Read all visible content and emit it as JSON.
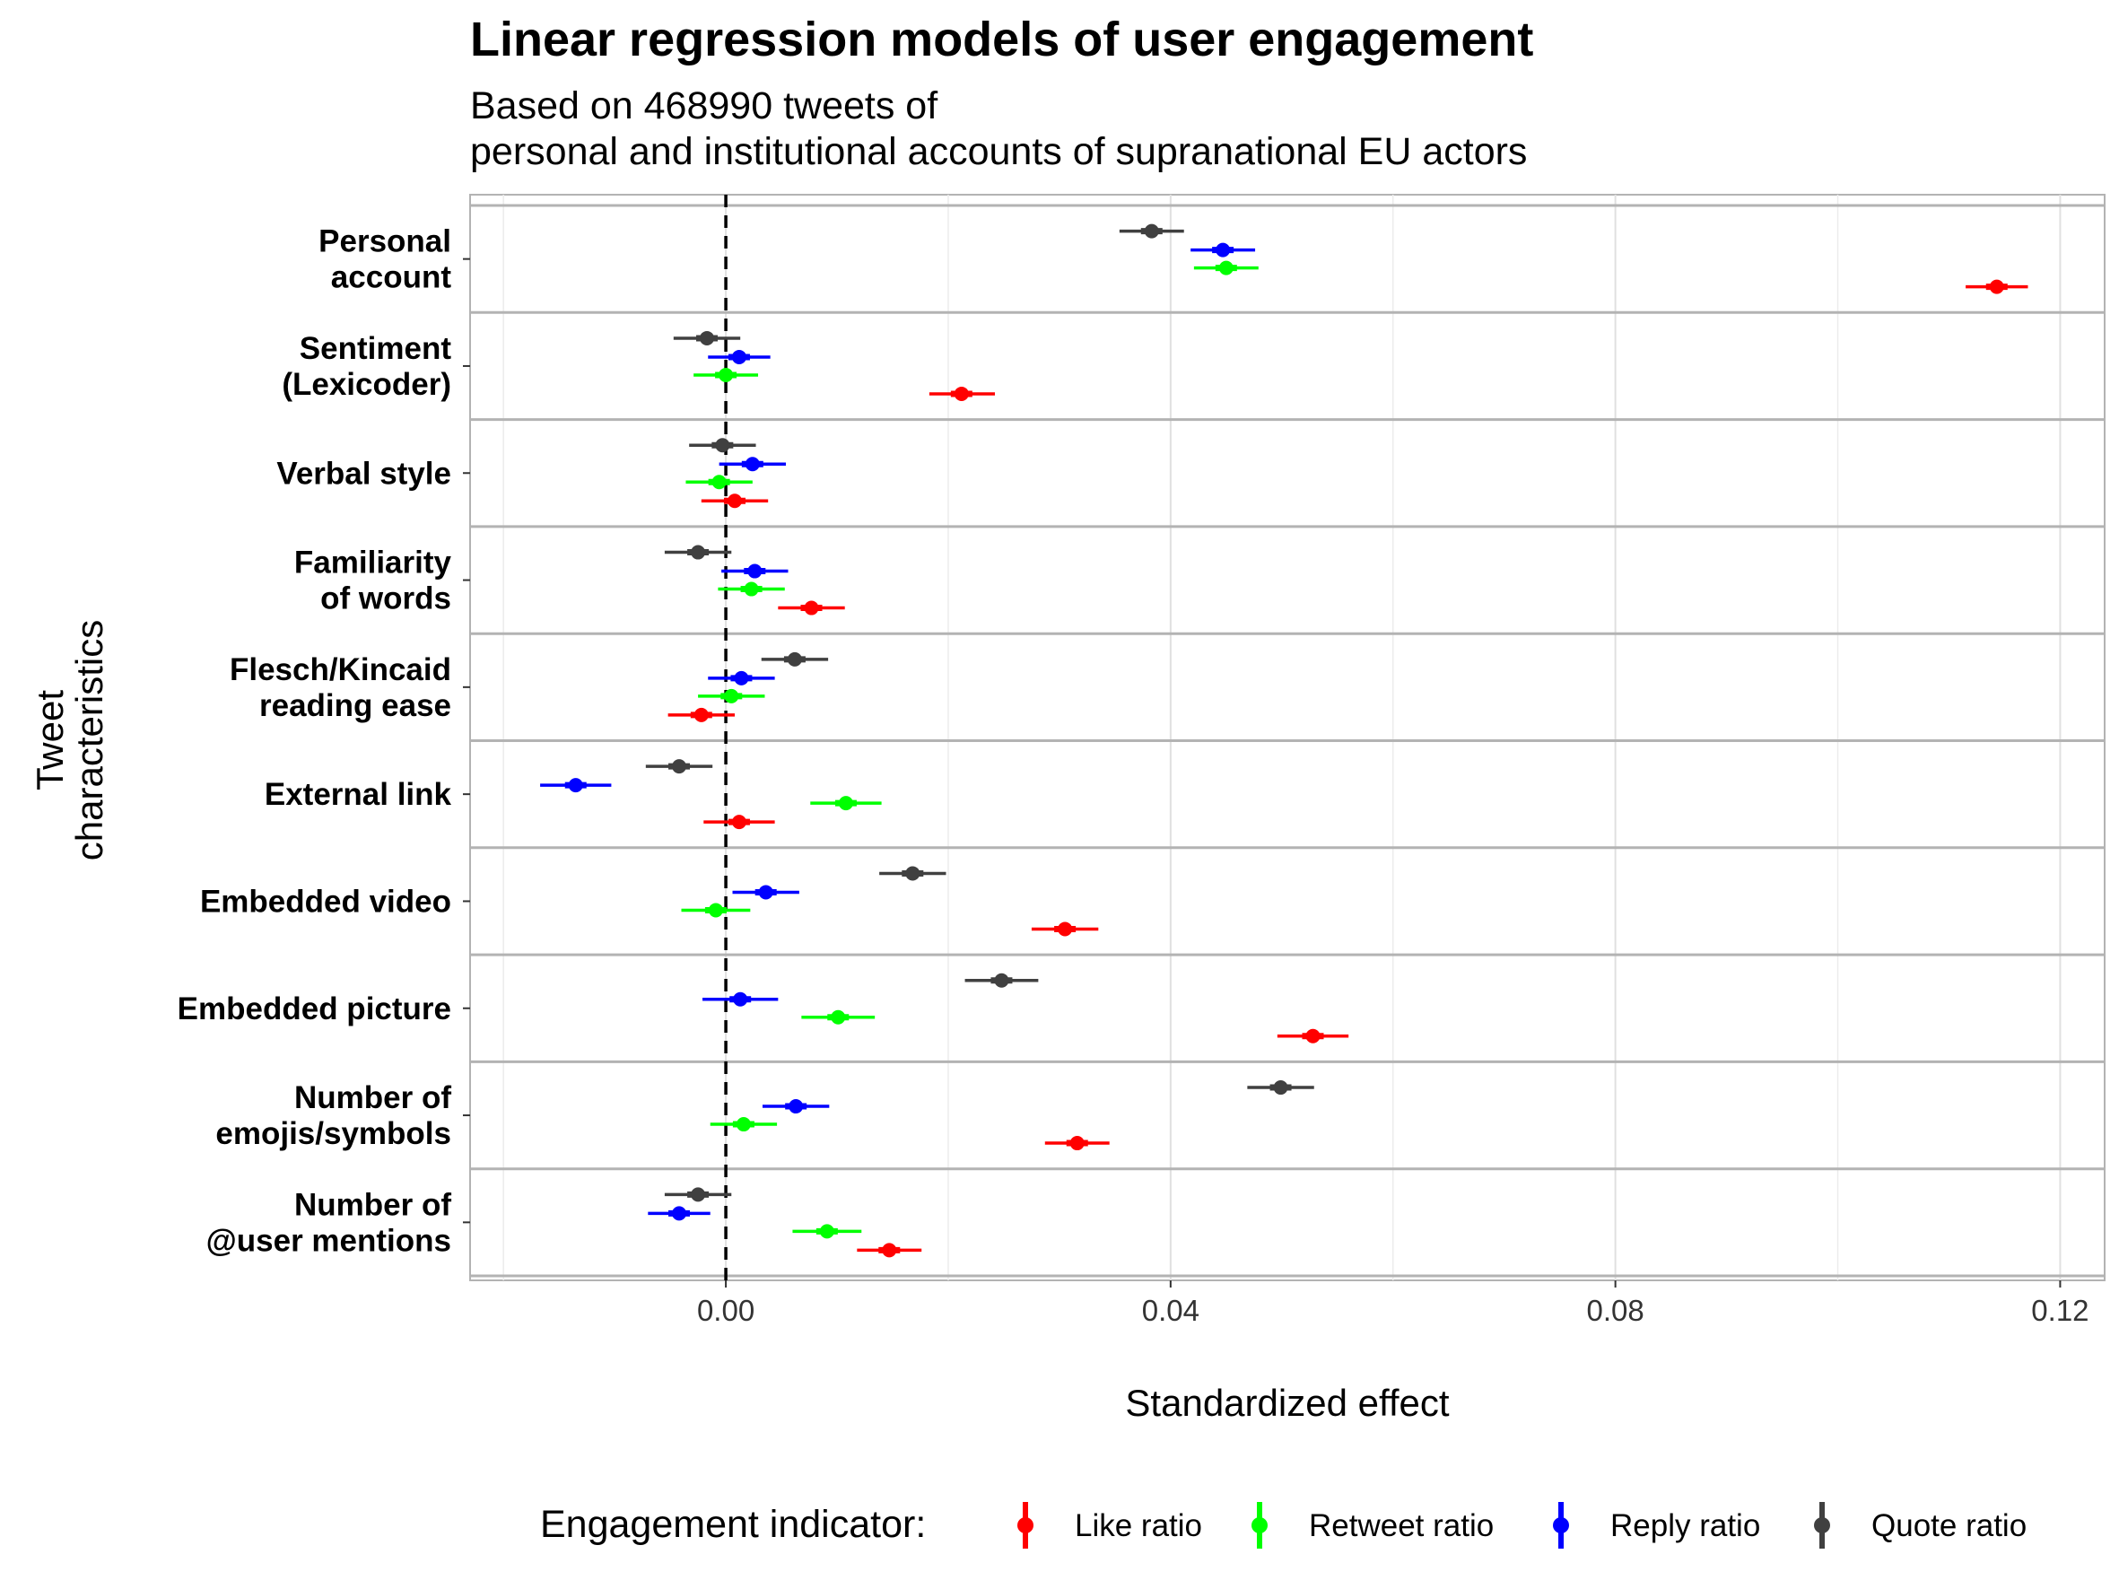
{
  "chart_data": {
    "type": "scatter",
    "title": "Linear regression models of user engagement",
    "subtitle_lines": [
      "Based on 468990 tweets of",
      "personal and institutional accounts of supranational EU actors"
    ],
    "xlabel": "Standardized effect",
    "ylabel_lines": [
      "Tweet",
      "characteristics"
    ],
    "xlim": [
      -0.023,
      0.124
    ],
    "xticks": [
      0.0,
      0.04,
      0.08,
      0.12
    ],
    "xtick_labels": [
      "0.00",
      "0.04",
      "0.08",
      "0.12"
    ],
    "reference_line": 0.0,
    "grid": true,
    "legend_position": "bottom",
    "legend_title": "Engagement indicator:",
    "categories": [
      [
        "Personal",
        "account"
      ],
      [
        "Sentiment",
        "(Lexicoder)"
      ],
      [
        "Verbal style"
      ],
      [
        "Familiarity",
        "of words"
      ],
      [
        "Flesch/Kincaid",
        "reading ease"
      ],
      [
        "External link"
      ],
      [
        "Embedded video"
      ],
      [
        "Embedded picture"
      ],
      [
        "Number of",
        "emojis/symbols"
      ],
      [
        "Number of",
        "@user mentions"
      ]
    ],
    "series": [
      {
        "name": "Like ratio",
        "color": "#ff0000",
        "estimate": [
          0.1143,
          0.0212,
          0.0008,
          0.0077,
          -0.0022,
          0.0012,
          0.0305,
          0.0528,
          0.0316,
          0.0147
        ],
        "lower": [
          0.1115,
          0.0183,
          -0.0022,
          0.0047,
          -0.0052,
          -0.002,
          0.0275,
          0.0496,
          0.0287,
          0.0118
        ],
        "upper": [
          0.1171,
          0.0242,
          0.0038,
          0.0107,
          0.0008,
          0.0044,
          0.0335,
          0.056,
          0.0345,
          0.0176
        ]
      },
      {
        "name": "Retweet ratio",
        "color": "#00ff00",
        "estimate": [
          0.045,
          0.0,
          -0.0006,
          0.0023,
          0.0005,
          0.0108,
          -0.0009,
          0.0101,
          0.0016,
          0.0091
        ],
        "lower": [
          0.0421,
          -0.0029,
          -0.0036,
          -0.0007,
          -0.0025,
          0.0076,
          -0.004,
          0.0068,
          -0.0014,
          0.006
        ],
        "upper": [
          0.0479,
          0.0029,
          0.0024,
          0.0053,
          0.0035,
          0.014,
          0.0022,
          0.0134,
          0.0046,
          0.0122
        ]
      },
      {
        "name": "Reply ratio",
        "color": "#0000ff",
        "estimate": [
          0.0447,
          0.0012,
          0.0024,
          0.0026,
          0.0014,
          -0.0135,
          0.0036,
          0.0013,
          0.0063,
          -0.0042
        ],
        "lower": [
          0.0418,
          -0.0016,
          -0.0006,
          -0.0004,
          -0.0016,
          -0.0167,
          0.0006,
          -0.0021,
          0.0033,
          -0.007
        ],
        "upper": [
          0.0476,
          0.004,
          0.0054,
          0.0056,
          0.0044,
          -0.0103,
          0.0066,
          0.0047,
          0.0093,
          -0.0014
        ]
      },
      {
        "name": "Quote ratio",
        "color": "#404040",
        "estimate": [
          0.0383,
          -0.0017,
          -0.0003,
          -0.0025,
          0.0062,
          -0.0042,
          0.0168,
          0.0248,
          0.0499,
          -0.0025
        ],
        "lower": [
          0.0354,
          -0.0047,
          -0.0033,
          -0.0055,
          0.0032,
          -0.0072,
          0.0138,
          0.0215,
          0.0469,
          -0.0055
        ],
        "upper": [
          0.0412,
          0.0013,
          0.0027,
          0.0005,
          0.0092,
          -0.0012,
          0.0198,
          0.0281,
          0.0529,
          0.0005
        ]
      }
    ]
  }
}
